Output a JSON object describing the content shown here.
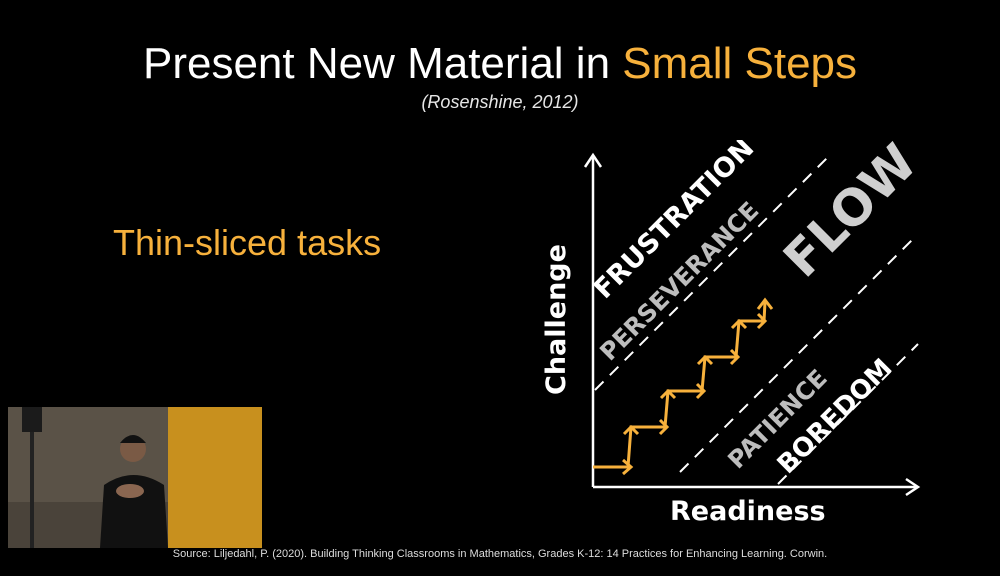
{
  "slide": {
    "title_main": "Present New Material in ",
    "title_highlight": "Small Steps",
    "subtitle": "(Rosenshine, 2012)",
    "bullet": "Thin-sliced tasks",
    "footer": "Source: Liljedahl, P. (2020). Building Thinking Classrooms in Mathematics, Grades K-12: 14 Practices for Enhancing Learning. Corwin."
  },
  "diagram": {
    "y_axis_label": "Challenge",
    "x_axis_label": "Readiness",
    "zones": {
      "frustration": "FRUSTRATION",
      "perseverance": "PERSEVERANCE",
      "flow": "FLOW",
      "patience": "PATIENCE",
      "boredom": "BOREDOM"
    },
    "colors": {
      "accent": "#f7b13c",
      "white": "#ffffff",
      "grey": "#bdbdbd"
    }
  }
}
